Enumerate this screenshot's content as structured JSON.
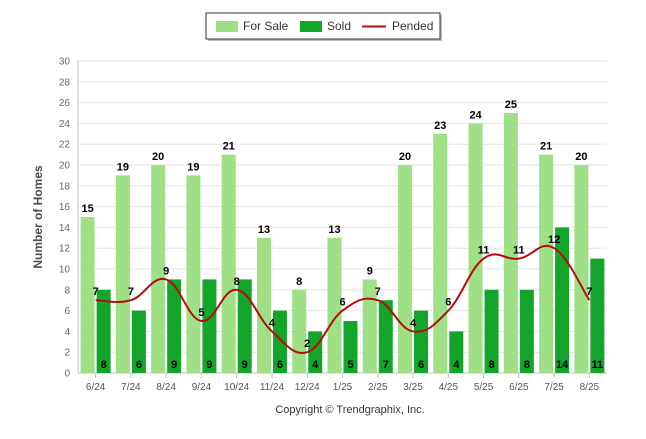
{
  "chart_data": {
    "type": "bar",
    "title": "",
    "xlabel": "",
    "ylabel": "Number of Homes",
    "ylim": [
      0,
      30
    ],
    "yticks": [
      0,
      2,
      4,
      6,
      8,
      10,
      12,
      14,
      16,
      18,
      20,
      22,
      24,
      26,
      28,
      30
    ],
    "grid": true,
    "legend_position": "top-center",
    "categories": [
      "6/24",
      "7/24",
      "8/24",
      "9/24",
      "10/24",
      "11/24",
      "12/24",
      "1/25",
      "2/25",
      "3/25",
      "4/25",
      "5/25",
      "6/25",
      "7/25",
      "8/25"
    ],
    "series": [
      {
        "name": "For Sale",
        "kind": "bar",
        "color": "#9fdf85",
        "values": [
          15,
          19,
          20,
          19,
          21,
          13,
          8,
          13,
          9,
          20,
          23,
          24,
          25,
          21,
          20
        ]
      },
      {
        "name": "Sold",
        "kind": "bar",
        "color": "#13a52a",
        "values": [
          8,
          6,
          9,
          9,
          9,
          6,
          4,
          5,
          7,
          6,
          4,
          8,
          8,
          14,
          11
        ]
      },
      {
        "name": "Pended",
        "kind": "line",
        "color": "#b30d0d",
        "values": [
          7,
          7,
          9,
          5,
          8,
          4,
          2,
          6,
          7,
          4,
          6,
          11,
          11,
          12,
          7
        ]
      }
    ]
  },
  "footer": {
    "copyright": "Copyright © Trendgraphix, Inc."
  }
}
